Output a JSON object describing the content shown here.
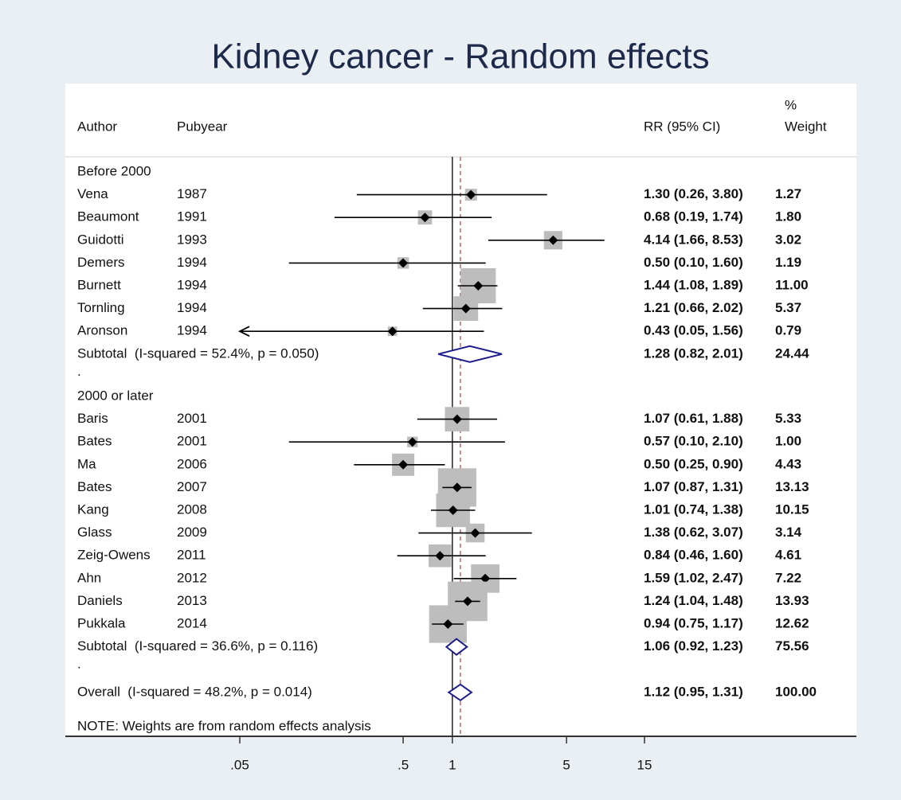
{
  "chart_data": {
    "type": "forest",
    "title": "Kidney cancer - Random effects",
    "columns": {
      "author": "Author",
      "year": "Pubyear",
      "rr": "RR (95% CI)",
      "weight_top": "%",
      "weight": "Weight"
    },
    "xscale": "log",
    "xlim": [
      0.05,
      15
    ],
    "xticks": [
      {
        "value": 0.05,
        "label": ".05"
      },
      {
        "value": 0.5,
        "label": ".5"
      },
      1,
      5,
      15
    ],
    "null_value": 1,
    "groups": [
      {
        "name": "Before 2000",
        "authors": [
          "Vena",
          "Beaumont",
          "Guidotti",
          "Demers",
          "Burnett",
          "Tornling",
          "Aronson"
        ],
        "years": [
          "1987",
          "1991",
          "1993",
          "1994",
          "1994",
          "1994",
          "1994"
        ],
        "values": [
          1.3,
          0.68,
          4.14,
          0.5,
          1.44,
          1.21,
          0.43
        ],
        "lower": [
          0.26,
          0.19,
          1.66,
          0.1,
          1.08,
          0.66,
          0.05
        ],
        "upper": [
          3.8,
          1.74,
          8.53,
          1.6,
          1.89,
          2.02,
          1.56
        ],
        "value_labels": [
          "1.30 (0.26, 3.80)",
          "0.68 (0.19, 1.74)",
          "4.14 (1.66, 8.53)",
          "0.50 (0.10, 1.60)",
          "1.44 (1.08, 1.89)",
          "1.21 (0.66, 2.02)",
          "0.43 (0.05, 1.56)"
        ],
        "weights": [
          1.27,
          1.8,
          3.02,
          1.19,
          11.0,
          5.37,
          0.79
        ],
        "weight_labels": [
          "1.27",
          "1.80",
          "3.02",
          "1.19",
          "11.00",
          "5.37",
          "0.79"
        ],
        "subtotal": {
          "label": "Subtotal  (I-squared = 52.4%, p = 0.050)",
          "value": 1.28,
          "lower": 0.82,
          "upper": 2.01,
          "value_label": "1.28 (0.82, 2.01)",
          "weight": 24.44,
          "weight_label": "24.44"
        },
        "separator": "."
      },
      {
        "name": "2000 or later",
        "authors": [
          "Baris",
          "Bates",
          "Ma",
          "Bates",
          "Kang",
          "Glass",
          "Zeig-Owens",
          "Ahn",
          "Daniels",
          "Pukkala"
        ],
        "years": [
          "2001",
          "2001",
          "2006",
          "2007",
          "2008",
          "2009",
          "2011",
          "2012",
          "2013",
          "2014"
        ],
        "values": [
          1.07,
          0.57,
          0.5,
          1.07,
          1.01,
          1.38,
          0.84,
          1.59,
          1.24,
          0.94
        ],
        "lower": [
          0.61,
          0.1,
          0.25,
          0.87,
          0.74,
          0.62,
          0.46,
          1.02,
          1.04,
          0.75
        ],
        "upper": [
          1.88,
          2.1,
          0.9,
          1.31,
          1.38,
          3.07,
          1.6,
          2.47,
          1.48,
          1.17
        ],
        "value_labels": [
          "1.07 (0.61, 1.88)",
          "0.57 (0.10, 2.10)",
          "0.50 (0.25, 0.90)",
          "1.07 (0.87, 1.31)",
          "1.01 (0.74, 1.38)",
          "1.38 (0.62, 3.07)",
          "0.84 (0.46, 1.60)",
          "1.59 (1.02, 2.47)",
          "1.24 (1.04, 1.48)",
          "0.94 (0.75, 1.17)"
        ],
        "weights": [
          5.33,
          1.0,
          4.43,
          13.13,
          10.15,
          3.14,
          4.61,
          7.22,
          13.93,
          12.62
        ],
        "weight_labels": [
          "5.33",
          "1.00",
          "4.43",
          "13.13",
          "10.15",
          "3.14",
          "4.61",
          "7.22",
          "13.93",
          "12.62"
        ],
        "subtotal": {
          "label": "Subtotal  (I-squared = 36.6%, p = 0.116)",
          "value": 1.06,
          "lower": 0.92,
          "upper": 1.23,
          "value_label": "1.06 (0.92, 1.23)",
          "weight": 75.56,
          "weight_label": "75.56"
        },
        "separator": "."
      }
    ],
    "overall": {
      "label": "Overall  (I-squared = 48.2%, p = 0.014)",
      "value": 1.12,
      "lower": 0.95,
      "upper": 1.31,
      "value_label": "1.12 (0.95, 1.31)",
      "weight": 100.0,
      "weight_label": "100.00"
    },
    "note": "NOTE: Weights are from random effects analysis"
  }
}
